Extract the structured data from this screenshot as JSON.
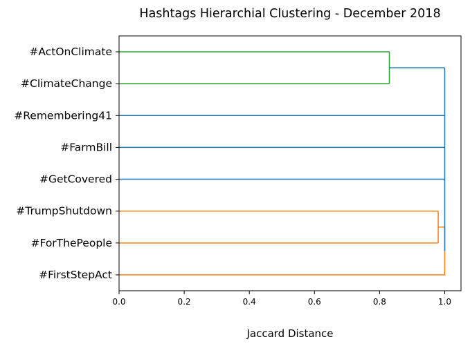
{
  "chart_data": {
    "type": "dendrogram",
    "title": "Hashtags Hierarchial Clustering - December 2018",
    "xlabel": "Jaccard Distance",
    "xlim": [
      0,
      1.05
    ],
    "xticks": [
      "0.0",
      "0.2",
      "0.4",
      "0.6",
      "0.8",
      "1.0"
    ],
    "leaves": [
      "#ActOnClimate",
      "#ClimateChange",
      "#Remembering41",
      "#FarmBill",
      "#GetCovered",
      "#TrumpShutdown",
      "#ForThePeople",
      "#FirstStepAct"
    ],
    "merges": [
      {
        "children": [
          "#ActOnClimate",
          "#ClimateChange"
        ],
        "distance": 0.83,
        "color": "#2ca02c"
      },
      {
        "children": [
          "#TrumpShutdown",
          "#ForThePeople"
        ],
        "distance": 0.98,
        "color": "#ff7f0e"
      },
      {
        "children": [
          "#TrumpShutdown + #ForThePeople",
          "#FirstStepAct"
        ],
        "distance": 1.0,
        "color": "#ff7f0e"
      },
      {
        "children": [
          "#ActOnClimate + #ClimateChange",
          "#Remembering41",
          "#FarmBill",
          "#GetCovered",
          "#TrumpShutdown + #ForThePeople + #FirstStepAct"
        ],
        "distance": 1.0,
        "color": "#1f77b4"
      }
    ],
    "grid": false
  }
}
